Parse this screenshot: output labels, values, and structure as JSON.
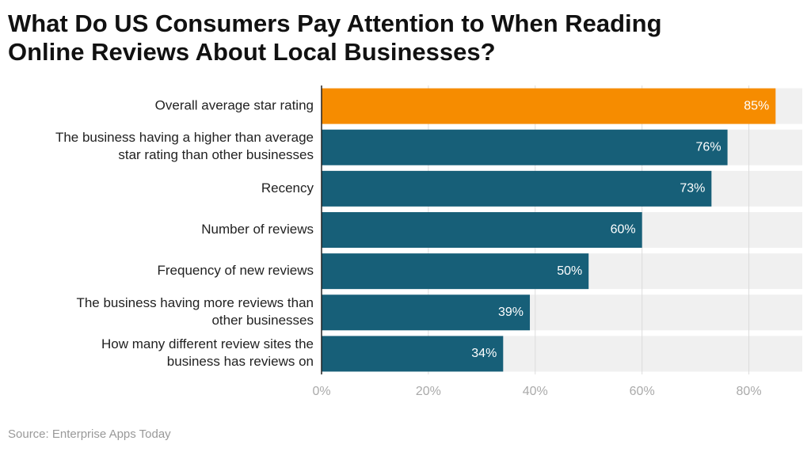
{
  "chart_data": {
    "type": "bar",
    "orientation": "horizontal",
    "title": "What Do US Consumers Pay Attention to When Reading\nOnline Reviews About Local Businesses?",
    "source": "Source: Enterprise Apps Today",
    "categories": [
      "Overall average star rating",
      "The business having a higher than average\nstar rating than other businesses",
      "Recency",
      "Number of reviews",
      "Frequency of new reviews",
      "The business having more reviews than\nother businesses",
      "How many different review sites the\nbusiness has reviews on"
    ],
    "values": [
      85,
      76,
      73,
      60,
      50,
      39,
      34
    ],
    "value_labels": [
      "85%",
      "76%",
      "73%",
      "60%",
      "50%",
      "39%",
      "34%"
    ],
    "colors": [
      "#f68c00",
      "#175f78",
      "#175f78",
      "#175f78",
      "#175f78",
      "#175f78",
      "#175f78"
    ],
    "xlim": [
      0,
      90
    ],
    "xticks": [
      {
        "value": 0,
        "label": "0%"
      },
      {
        "value": 20,
        "label": "20%"
      },
      {
        "value": 40,
        "label": "40%"
      },
      {
        "value": 60,
        "label": "60%"
      },
      {
        "value": 80,
        "label": "80%"
      }
    ],
    "grid": true
  }
}
